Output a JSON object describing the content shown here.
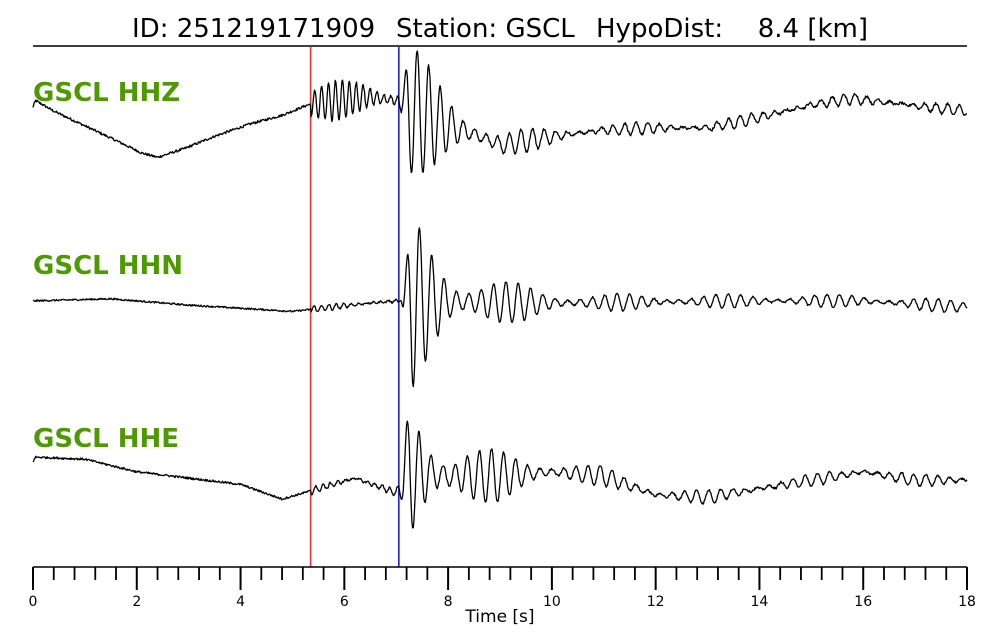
{
  "title": {
    "id_text": "ID: 251219171909",
    "station_text": "Station: GSCL",
    "hypodist_label": "HypoDist:",
    "hypodist_value": "8.4 [km]"
  },
  "chart_data": {
    "type": "line",
    "xlabel": "Time [s]",
    "xlim": [
      0,
      18
    ],
    "xticks": [
      0,
      2,
      4,
      6,
      8,
      10,
      12,
      14,
      16,
      18
    ],
    "minor_tick_step": 0.4,
    "label_color": "#4c9900",
    "pick_lines": [
      {
        "kind": "P",
        "time": 5.35,
        "color": "#e8302a"
      },
      {
        "kind": "S",
        "time": 7.05,
        "color": "#1f1fd6"
      }
    ],
    "series": [
      {
        "name": "GSCL HHZ",
        "knots": [
          [
            0,
            0.55
          ],
          [
            0.05,
            0.7
          ],
          [
            0.4,
            0.45
          ],
          [
            1.0,
            0.1
          ],
          [
            1.6,
            -0.25
          ],
          [
            2.1,
            -0.55
          ],
          [
            2.4,
            -0.65
          ],
          [
            2.9,
            -0.45
          ],
          [
            3.5,
            -0.15
          ],
          [
            4.2,
            0.15
          ],
          [
            4.8,
            0.35
          ],
          [
            5.3,
            0.6
          ],
          [
            5.8,
            0.7
          ],
          [
            6.4,
            0.8
          ],
          [
            7.0,
            0.7
          ],
          [
            7.5,
            0.35
          ],
          [
            8.0,
            0.1
          ],
          [
            8.5,
            -0.1
          ],
          [
            9.0,
            -0.35
          ],
          [
            9.5,
            -0.25
          ],
          [
            10.0,
            -0.15
          ],
          [
            11.0,
            0.0
          ],
          [
            12.0,
            0.05
          ],
          [
            13.0,
            0.05
          ],
          [
            14.0,
            0.3
          ],
          [
            15.0,
            0.6
          ],
          [
            15.8,
            0.75
          ],
          [
            16.5,
            0.65
          ],
          [
            17.2,
            0.55
          ],
          [
            18.0,
            0.45
          ]
        ],
        "bursts": [
          {
            "t0": 5.35,
            "t1": 7.05,
            "amp": 0.38,
            "freq": 7.5,
            "decay": 0.0
          },
          {
            "t0": 7.05,
            "t1": 18.0,
            "amp": 1.35,
            "freq": 4.5,
            "decay": 1.1
          }
        ],
        "noise": 0.06
      },
      {
        "name": "GSCL HHN",
        "knots": [
          [
            0,
            0.05
          ],
          [
            1.5,
            0.1
          ],
          [
            3.0,
            -0.05
          ],
          [
            5.0,
            -0.2
          ],
          [
            6.5,
            0.0
          ],
          [
            7.0,
            0.05
          ],
          [
            10,
            0.0
          ],
          [
            14,
            0.05
          ],
          [
            16,
            0.05
          ],
          [
            18,
            -0.1
          ]
        ],
        "bursts": [
          {
            "t0": 5.35,
            "t1": 7.05,
            "amp": 0.06,
            "freq": 7.0,
            "decay": 0.0
          },
          {
            "t0": 7.1,
            "t1": 18.0,
            "amp": 1.55,
            "freq": 4.2,
            "decay": 0.9
          }
        ],
        "noise": 0.04
      },
      {
        "name": "GSCL HHE",
        "knots": [
          [
            0,
            0.35
          ],
          [
            0.05,
            0.45
          ],
          [
            1.0,
            0.4
          ],
          [
            2.0,
            0.1
          ],
          [
            3.0,
            -0.05
          ],
          [
            4.0,
            -0.2
          ],
          [
            4.8,
            -0.55
          ],
          [
            5.5,
            -0.3
          ],
          [
            6.2,
            -0.05
          ],
          [
            7.0,
            -0.4
          ],
          [
            7.2,
            0.1
          ],
          [
            8.0,
            0.0
          ],
          [
            9.0,
            0.0
          ],
          [
            10.0,
            0.1
          ],
          [
            11.0,
            0.0
          ],
          [
            12.0,
            -0.45
          ],
          [
            13.0,
            -0.5
          ],
          [
            14.0,
            -0.3
          ],
          [
            15.0,
            -0.1
          ],
          [
            16.0,
            0.1
          ],
          [
            17.0,
            -0.1
          ],
          [
            18.0,
            -0.1
          ]
        ],
        "bursts": [
          {
            "t0": 5.35,
            "t1": 7.05,
            "amp": 0.08,
            "freq": 7.0,
            "decay": 0.0
          },
          {
            "t0": 7.05,
            "t1": 18.0,
            "amp": 1.45,
            "freq": 4.3,
            "decay": 0.8
          }
        ],
        "noise": 0.05
      }
    ]
  }
}
